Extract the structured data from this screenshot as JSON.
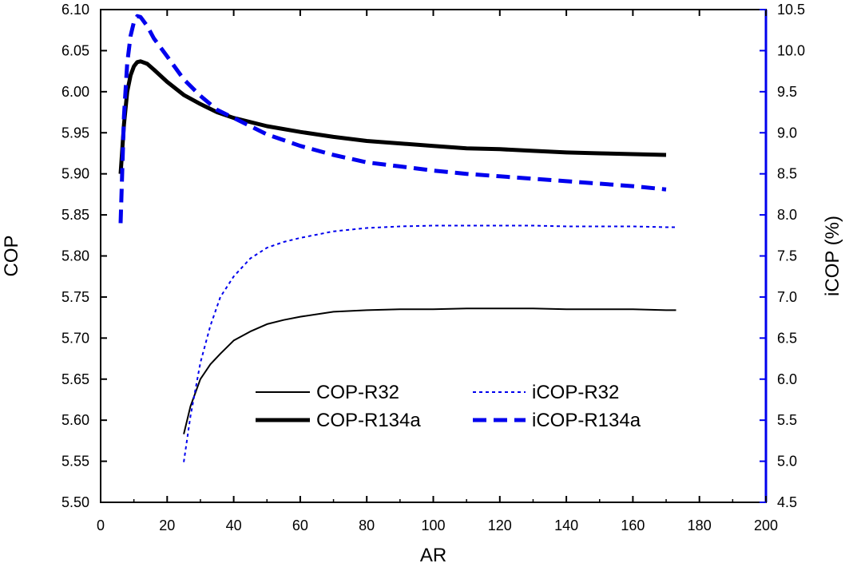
{
  "chart_data": {
    "type": "line",
    "title": "",
    "xlabel": "AR",
    "ylabel": "COP",
    "ylabel_right": "iCOP (%)",
    "xlim": [
      0,
      200
    ],
    "ylim": [
      5.5,
      6.1
    ],
    "ylim_right": [
      4.5,
      10.5
    ],
    "x_ticks": [
      "0",
      "20",
      "40",
      "60",
      "80",
      "100",
      "120",
      "140",
      "160",
      "180",
      "200"
    ],
    "y_ticks": [
      "5.50",
      "5.55",
      "5.60",
      "5.65",
      "5.70",
      "5.75",
      "5.80",
      "5.85",
      "5.90",
      "5.95",
      "6.00",
      "6.05",
      "6.10"
    ],
    "y_right_ticks": [
      "4.5",
      "5.0",
      "5.5",
      "6.0",
      "6.5",
      "7.0",
      "7.5",
      "8.0",
      "8.5",
      "9.0",
      "9.5",
      "10.0",
      "10.5"
    ],
    "colors": {
      "cop": "#000000",
      "icop": "#0000ee",
      "right_axis": "#0000ee"
    },
    "series": [
      {
        "name": "COP-R32",
        "axis": "left",
        "style": "thin-solid",
        "x": [
          25,
          27,
          30,
          33,
          36,
          40,
          45,
          50,
          55,
          60,
          70,
          80,
          90,
          100,
          110,
          120,
          130,
          140,
          150,
          160,
          170,
          173
        ],
        "y": [
          5.583,
          5.617,
          5.65,
          5.668,
          5.681,
          5.697,
          5.708,
          5.717,
          5.722,
          5.726,
          5.732,
          5.734,
          5.735,
          5.735,
          5.736,
          5.736,
          5.736,
          5.735,
          5.735,
          5.735,
          5.734,
          5.734
        ]
      },
      {
        "name": "COP-R134a",
        "axis": "left",
        "style": "thick-solid",
        "x": [
          6,
          7,
          8,
          9,
          10,
          11,
          12,
          14,
          16,
          20,
          25,
          30,
          35,
          40,
          50,
          60,
          70,
          80,
          90,
          100,
          110,
          120,
          130,
          140,
          150,
          160,
          170
        ],
        "y": [
          5.9,
          5.96,
          6.0,
          6.02,
          6.031,
          6.036,
          6.037,
          6.034,
          6.027,
          6.012,
          5.996,
          5.985,
          5.975,
          5.968,
          5.958,
          5.951,
          5.945,
          5.94,
          5.937,
          5.934,
          5.931,
          5.93,
          5.928,
          5.926,
          5.925,
          5.924,
          5.923
        ]
      },
      {
        "name": "iCOP-R32",
        "axis": "right",
        "style": "thin-dotted",
        "x": [
          25,
          27,
          30,
          33,
          36,
          40,
          45,
          50,
          55,
          60,
          70,
          80,
          90,
          100,
          110,
          120,
          130,
          140,
          150,
          160,
          170,
          173
        ],
        "y": [
          4.99,
          5.55,
          6.2,
          6.65,
          7.0,
          7.25,
          7.47,
          7.6,
          7.67,
          7.72,
          7.8,
          7.84,
          7.86,
          7.87,
          7.87,
          7.87,
          7.87,
          7.86,
          7.86,
          7.86,
          7.85,
          7.85
        ]
      },
      {
        "name": "iCOP-R134a",
        "axis": "right",
        "style": "thick-dashed",
        "x": [
          6,
          7,
          8,
          9,
          10,
          11,
          12,
          14,
          16,
          20,
          25,
          30,
          35,
          40,
          50,
          60,
          70,
          80,
          90,
          100,
          110,
          120,
          130,
          140,
          150,
          160,
          170
        ],
        "y": [
          7.9,
          9.2,
          9.85,
          10.18,
          10.35,
          10.42,
          10.41,
          10.3,
          10.15,
          9.93,
          9.65,
          9.45,
          9.28,
          9.18,
          8.98,
          8.84,
          8.73,
          8.64,
          8.59,
          8.54,
          8.5,
          8.47,
          8.44,
          8.41,
          8.38,
          8.35,
          8.31
        ]
      }
    ],
    "legend": [
      {
        "label": "COP-R32",
        "series": 0
      },
      {
        "label": "COP-R134a",
        "series": 1
      },
      {
        "label": "iCOP-R32",
        "series": 2
      },
      {
        "label": "iCOP-R134a",
        "series": 3
      }
    ]
  }
}
